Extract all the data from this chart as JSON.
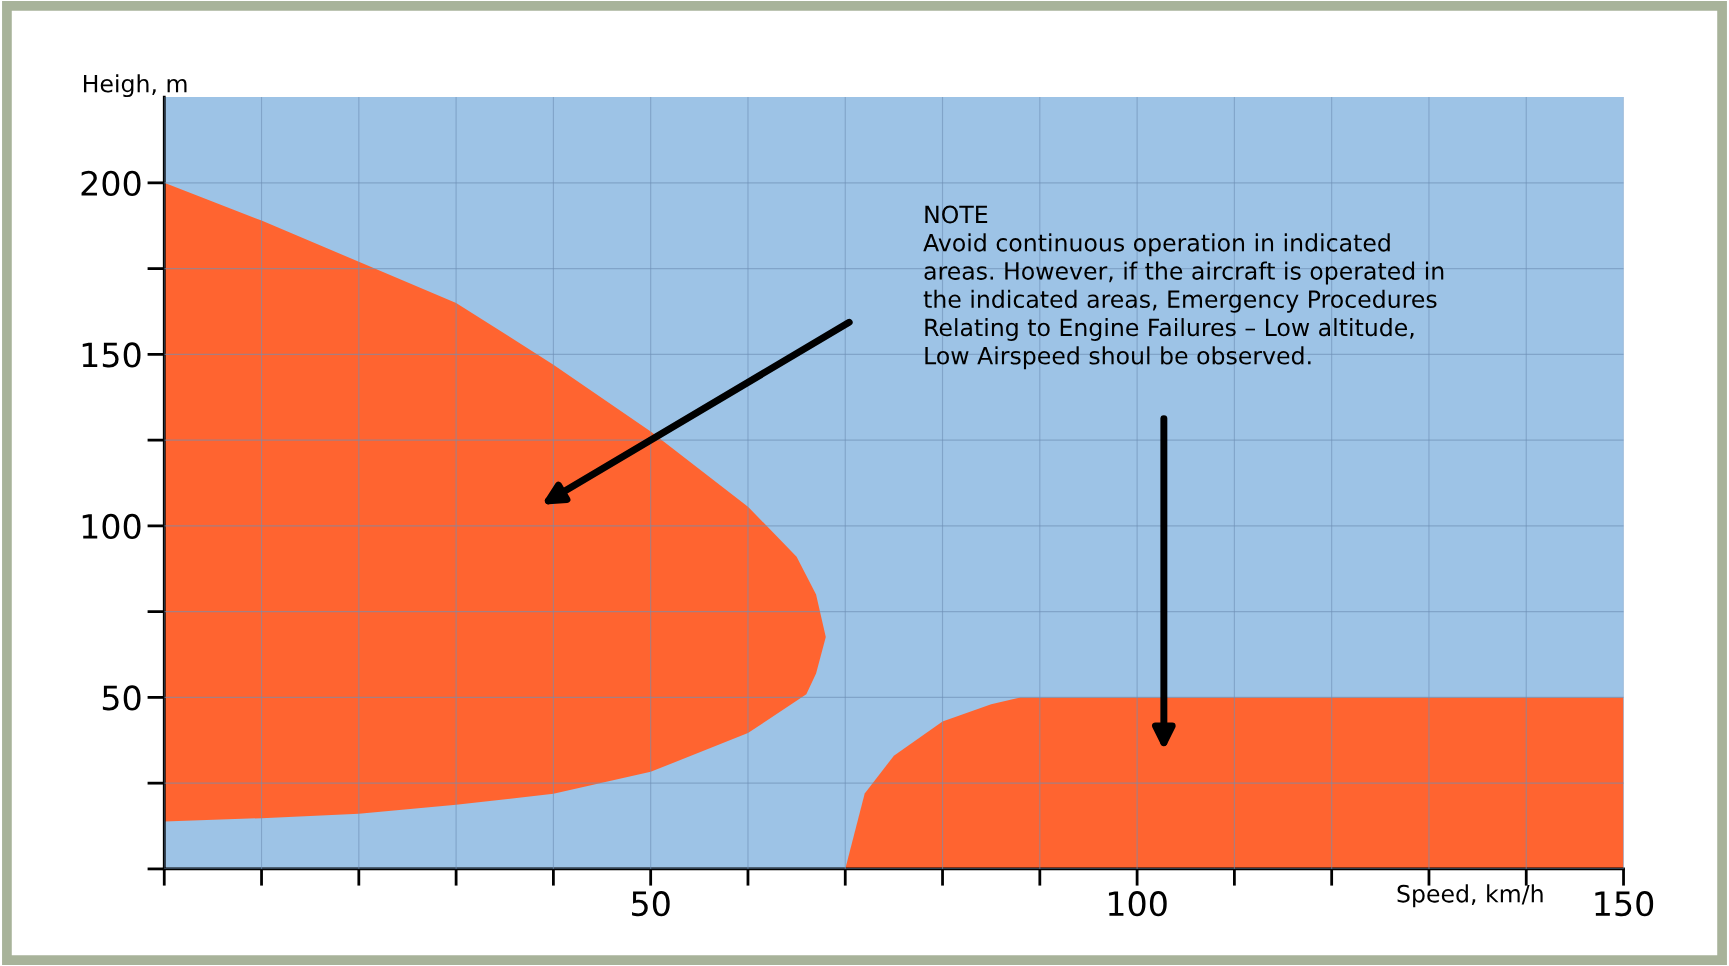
{
  "chart_data": {
    "type": "area",
    "xlabel": "Speed, km/h",
    "ylabel": "Heigh, m",
    "series": [
      {
        "color": "#ff6430",
        "x": [
          0,
          10,
          20,
          30,
          40,
          50,
          60,
          65,
          67,
          68,
          67,
          66,
          60,
          50,
          40,
          30,
          20,
          10,
          0
        ],
        "values": [
          200,
          189,
          177,
          165,
          147,
          127.5,
          105.6,
          91,
          80,
          67.6,
          57,
          50.9,
          39.6,
          28.3,
          21.9,
          18.7,
          16.1,
          14.8,
          13.8
        ]
      },
      {
        "color": "#ff6430",
        "x": [
          70,
          72,
          75,
          80,
          85,
          88,
          150,
          150
        ],
        "values": [
          0,
          22,
          33,
          43,
          48,
          50,
          50,
          0
        ]
      }
    ],
    "annotations": [
      "NOTE\nAvoid continuous operation in indicated\nareas. However, if the aircraft is operated in\nthe indicated areas, Emergency Procedures\nRelating to Engine Failures – Low altitude,\nLow Airspeed shoul be observed."
    ],
    "xlim": [
      0,
      150
    ],
    "ylim": [
      0,
      225
    ],
    "xticks": [
      {
        "value": 0,
        "label": null
      },
      {
        "value": 10,
        "label": null
      },
      {
        "value": 20,
        "label": null
      },
      {
        "value": 30,
        "label": null
      },
      {
        "value": 40,
        "label": null
      },
      50,
      {
        "value": 60,
        "label": null
      },
      {
        "value": 70,
        "label": null
      },
      {
        "value": 80,
        "label": null
      },
      {
        "value": 90,
        "label": null
      },
      100,
      {
        "value": 110,
        "label": null
      },
      {
        "value": 120,
        "label": null
      },
      {
        "value": 130,
        "label": null
      },
      {
        "value": 140,
        "label": null
      },
      150
    ],
    "yticks": [
      {
        "value": 0,
        "label": null
      },
      {
        "value": 25,
        "label": null
      },
      50,
      {
        "value": 75,
        "label": null
      },
      100,
      {
        "value": 125,
        "label": null
      },
      150,
      {
        "value": 175,
        "label": null
      },
      200
    ],
    "grid": true
  }
}
